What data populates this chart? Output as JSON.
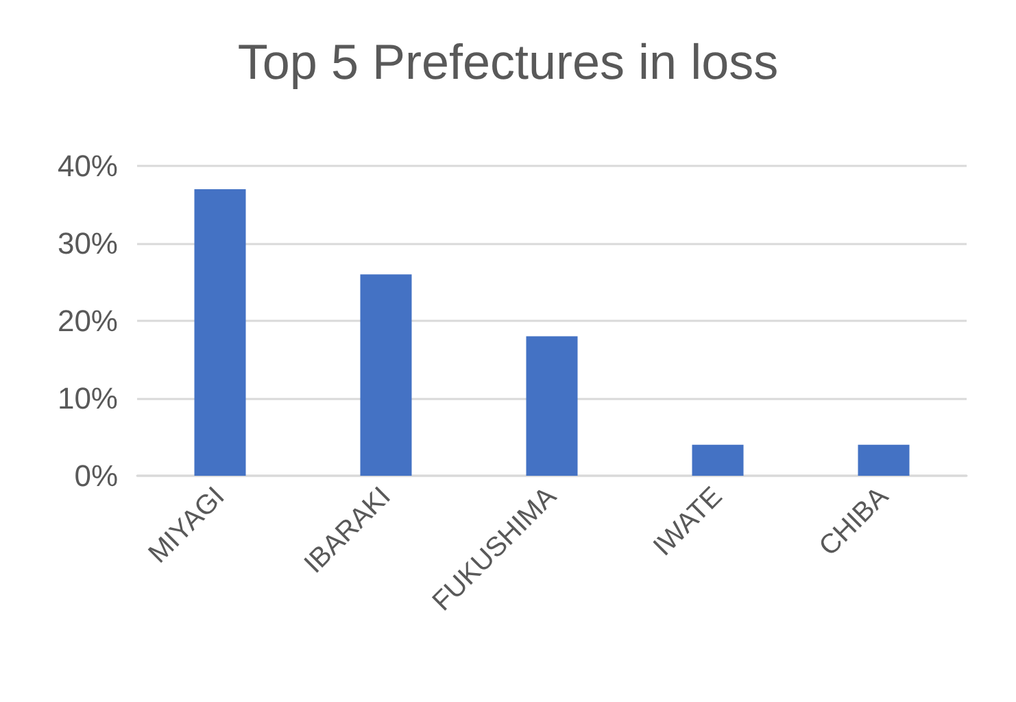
{
  "chart_data": {
    "type": "bar",
    "title": "Top 5 Prefectures in loss",
    "categories": [
      "MIYAGI",
      "IBARAKI",
      "FUKUSHIMA",
      "IWATE",
      "CHIBA"
    ],
    "values": [
      37,
      26,
      18,
      4,
      4
    ],
    "color": "#4472c4",
    "ylim": [
      0,
      40
    ],
    "yticks": [
      {
        "value": 0,
        "label": "0%"
      },
      {
        "value": 10,
        "label": "10%"
      },
      {
        "value": 20,
        "label": "20%"
      },
      {
        "value": 30,
        "label": "30%"
      },
      {
        "value": 40,
        "label": "40%"
      }
    ],
    "grid": "y"
  }
}
